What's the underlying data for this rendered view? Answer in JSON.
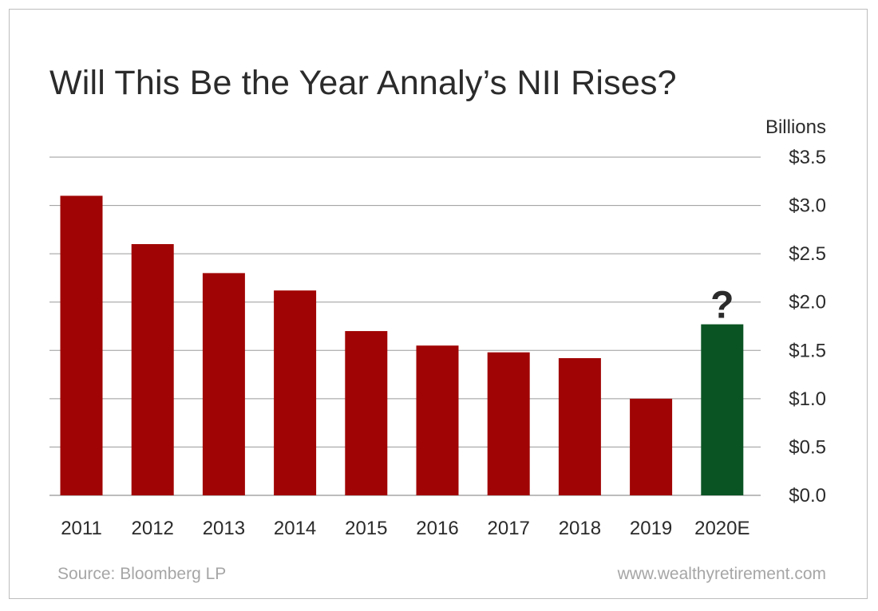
{
  "chart_data": {
    "type": "bar",
    "title": "Will This Be the Year Annaly’s NII Rises?",
    "unit_label": "Billions",
    "categories": [
      "2011",
      "2012",
      "2013",
      "2014",
      "2015",
      "2016",
      "2017",
      "2018",
      "2019",
      "2020E"
    ],
    "values": [
      3.1,
      2.6,
      2.3,
      2.12,
      1.7,
      1.55,
      1.48,
      1.42,
      1.0,
      1.77
    ],
    "y_ticks": [
      "$0.0",
      "$0.5",
      "$1.0",
      "$1.5",
      "$2.0",
      "$2.5",
      "$3.0",
      "$3.5"
    ],
    "ylim": [
      0,
      3.5
    ],
    "y_axis_position": "right",
    "grid": true,
    "bar_colors": [
      "#a10404",
      "#a10404",
      "#a10404",
      "#a10404",
      "#a10404",
      "#a10404",
      "#a10404",
      "#a10404",
      "#a10404",
      "#0a5423"
    ],
    "annotation": {
      "category": "2020E",
      "text": "?"
    }
  },
  "footer": {
    "source": "Source: Bloomberg LP",
    "website": "www.wealthyretirement.com"
  }
}
